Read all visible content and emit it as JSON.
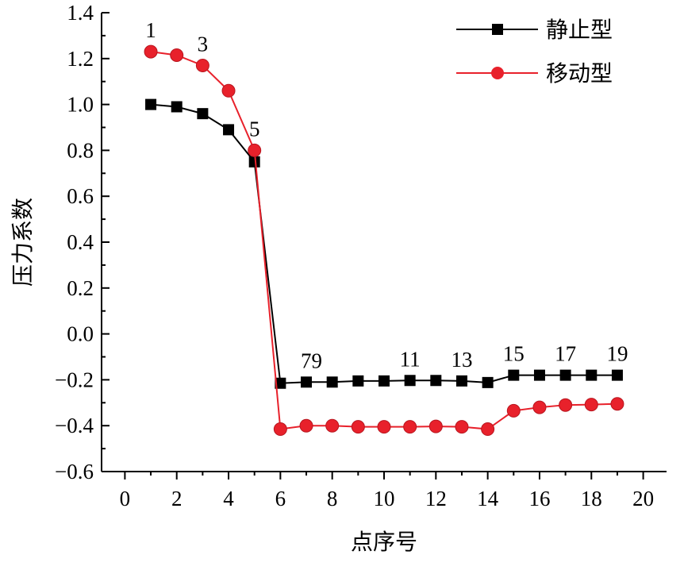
{
  "chart_data": {
    "type": "line",
    "xlabel": "点序号",
    "ylabel": "压力系数",
    "xlim": [
      -0.9,
      20.9
    ],
    "ylim": [
      -0.6,
      1.4
    ],
    "xticks": [
      "0",
      "2",
      "4",
      "6",
      "8",
      "10",
      "12",
      "14",
      "16",
      "18",
      "20"
    ],
    "yticks": [
      "−0.6",
      "−0.4",
      "−0.2",
      "0.0",
      "0.2",
      "0.4",
      "0.6",
      "0.8",
      "1.0",
      "1.2",
      "1.4"
    ],
    "x": [
      1,
      2,
      3,
      4,
      5,
      6,
      7,
      8,
      9,
      10,
      11,
      12,
      13,
      14,
      15,
      16,
      17,
      18,
      19
    ],
    "series": [
      {
        "name": "静止型",
        "color": "#000000",
        "marker": "square",
        "values": [
          1.0,
          0.99,
          0.96,
          0.89,
          0.75,
          -0.215,
          -0.21,
          -0.21,
          -0.205,
          -0.205,
          -0.203,
          -0.203,
          -0.205,
          -0.212,
          -0.18,
          -0.18,
          -0.18,
          -0.18,
          -0.18
        ]
      },
      {
        "name": "移动型",
        "color": "#e8212b",
        "marker": "circle",
        "values": [
          1.23,
          1.215,
          1.17,
          1.06,
          0.8,
          -0.415,
          -0.4,
          -0.4,
          -0.405,
          -0.405,
          -0.405,
          -0.403,
          -0.405,
          -0.415,
          -0.335,
          -0.32,
          -0.31,
          -0.308,
          -0.305
        ]
      }
    ],
    "annotations": [
      {
        "text": "1",
        "x": 1,
        "y": 1.23
      },
      {
        "text": "3",
        "x": 3,
        "y": 1.17
      },
      {
        "text": "5",
        "x": 5,
        "y": 0.8
      },
      {
        "text": "79",
        "x": 7.2,
        "y": -0.21
      },
      {
        "text": "11",
        "x": 11,
        "y": -0.203
      },
      {
        "text": "13",
        "x": 13,
        "y": -0.205
      },
      {
        "text": "15",
        "x": 15,
        "y": -0.18
      },
      {
        "text": "17",
        "x": 17,
        "y": -0.18
      },
      {
        "text": "19",
        "x": 19,
        "y": -0.18
      }
    ],
    "legend_position": "top-right",
    "grid": false
  }
}
